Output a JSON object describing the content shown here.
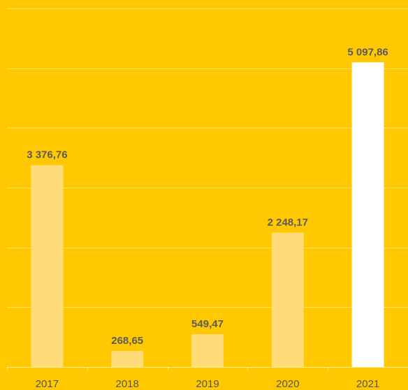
{
  "chart_data": {
    "type": "bar",
    "categories": [
      "2017",
      "2018",
      "2019",
      "2020",
      "2021"
    ],
    "values": [
      3376.76,
      268.65,
      549.47,
      2248.17,
      5097.86
    ],
    "value_labels": [
      "3 376,76",
      "268,65",
      "549,47",
      "2 248,17",
      "5 097,86"
    ],
    "title": "",
    "xlabel": "",
    "ylabel": "",
    "ylim": [
      0,
      6000
    ],
    "grid": true,
    "legend": "none"
  },
  "colors": {
    "background": "#FFC800",
    "bar": "#FFDC78",
    "highlight_bar": "#FFFFFF",
    "label": "#5A5A5A"
  },
  "highlight_index": 4
}
